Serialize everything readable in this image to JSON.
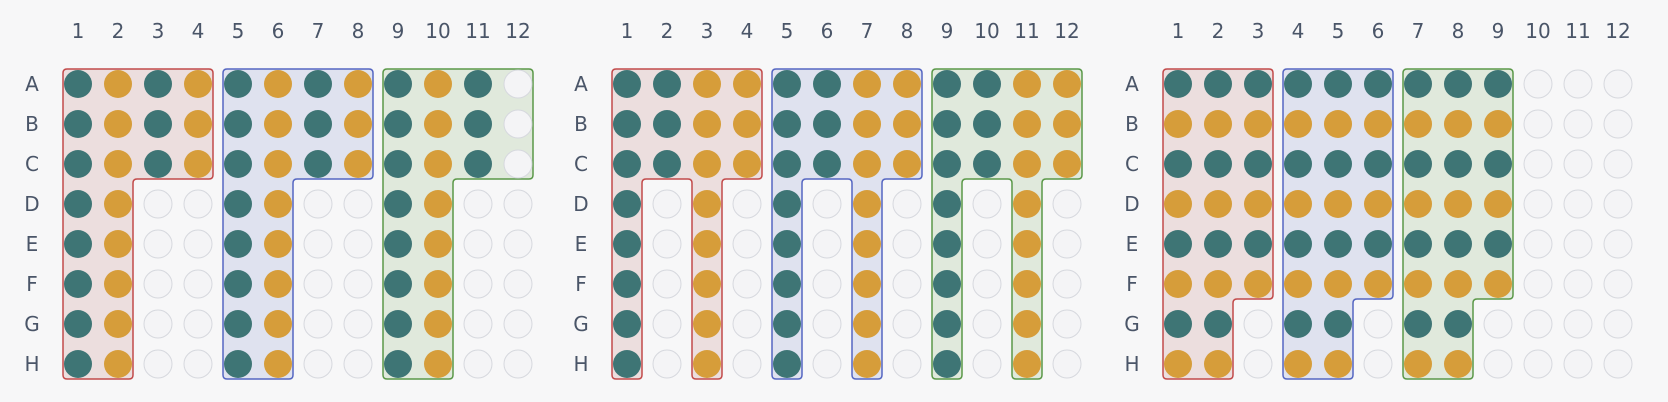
{
  "row_labels": [
    "A",
    "B",
    "C",
    "D",
    "E",
    "F",
    "G",
    "H"
  ],
  "col_labels": [
    "1",
    "2",
    "3",
    "4",
    "5",
    "6",
    "7",
    "8",
    "9",
    "10",
    "11",
    "12"
  ],
  "colors": {
    "teal": "#3e7575",
    "amber": "#d69d3a",
    "empty_fill": "#f4f4f6",
    "empty_stroke": "#d6d8de",
    "group_red": "#c24a4a",
    "group_red_fill": "#ecdede",
    "group_blue": "#5566c2",
    "group_blue_fill": "#dfe2ef",
    "group_green": "#5a9848",
    "group_green_fill": "#e0e9dc"
  },
  "plates": [
    {
      "name": "plate-1",
      "wells": [
        "TATATATATAT.",
        "TATATATATAT.",
        "TATATATATAT.",
        "TA..TA..TA..",
        "TA..TA..TA..",
        "TA..TA..TA..",
        "TA..TA..TA..",
        "TA..TA..TA.."
      ],
      "groups": [
        {
          "color": "group_red",
          "cells": [
            [
              0,
              0
            ],
            [
              0,
              1
            ],
            [
              0,
              2
            ],
            [
              0,
              3
            ],
            [
              1,
              0
            ],
            [
              1,
              1
            ],
            [
              1,
              2
            ],
            [
              1,
              3
            ],
            [
              2,
              0
            ],
            [
              2,
              1
            ],
            [
              2,
              2
            ],
            [
              2,
              3
            ],
            [
              3,
              0
            ],
            [
              3,
              1
            ],
            [
              4,
              0
            ],
            [
              4,
              1
            ],
            [
              5,
              0
            ],
            [
              5,
              1
            ],
            [
              6,
              0
            ],
            [
              6,
              1
            ],
            [
              7,
              0
            ],
            [
              7,
              1
            ]
          ]
        },
        {
          "color": "group_blue",
          "cells": [
            [
              0,
              4
            ],
            [
              0,
              5
            ],
            [
              0,
              6
            ],
            [
              0,
              7
            ],
            [
              1,
              4
            ],
            [
              1,
              5
            ],
            [
              1,
              6
            ],
            [
              1,
              7
            ],
            [
              2,
              4
            ],
            [
              2,
              5
            ],
            [
              2,
              6
            ],
            [
              2,
              7
            ],
            [
              3,
              4
            ],
            [
              3,
              5
            ],
            [
              4,
              4
            ],
            [
              4,
              5
            ],
            [
              5,
              4
            ],
            [
              5,
              5
            ],
            [
              6,
              4
            ],
            [
              6,
              5
            ],
            [
              7,
              4
            ],
            [
              7,
              5
            ]
          ]
        },
        {
          "color": "group_green",
          "cells": [
            [
              0,
              8
            ],
            [
              0,
              9
            ],
            [
              0,
              10
            ],
            [
              0,
              11
            ],
            [
              1,
              8
            ],
            [
              1,
              9
            ],
            [
              1,
              10
            ],
            [
              1,
              11
            ],
            [
              2,
              8
            ],
            [
              2,
              9
            ],
            [
              2,
              10
            ],
            [
              2,
              11
            ],
            [
              3,
              8
            ],
            [
              3,
              9
            ],
            [
              4,
              8
            ],
            [
              4,
              9
            ],
            [
              5,
              8
            ],
            [
              5,
              9
            ],
            [
              6,
              8
            ],
            [
              6,
              9
            ],
            [
              7,
              8
            ],
            [
              7,
              9
            ]
          ]
        }
      ]
    },
    {
      "name": "plate-2",
      "wells": [
        "TTAATTAATTAA",
        "TTAATTAATTAA",
        "TTAATTAATTAA",
        "T.A.T.A.T.A.",
        "T.A.T.A.T.A.",
        "T.A.T.A.T.A.",
        "T.A.T.A.T.A.",
        "T.A.T.A.T.A."
      ],
      "groups": [
        {
          "color": "group_red",
          "cells": [
            [
              0,
              0
            ],
            [
              0,
              1
            ],
            [
              0,
              2
            ],
            [
              0,
              3
            ],
            [
              1,
              0
            ],
            [
              1,
              1
            ],
            [
              1,
              2
            ],
            [
              1,
              3
            ],
            [
              2,
              0
            ],
            [
              2,
              1
            ],
            [
              2,
              2
            ],
            [
              2,
              3
            ],
            [
              3,
              0
            ],
            [
              3,
              2
            ],
            [
              4,
              0
            ],
            [
              4,
              2
            ],
            [
              5,
              0
            ],
            [
              5,
              2
            ],
            [
              6,
              0
            ],
            [
              6,
              2
            ],
            [
              7,
              0
            ],
            [
              7,
              2
            ]
          ]
        },
        {
          "color": "group_blue",
          "cells": [
            [
              0,
              4
            ],
            [
              0,
              5
            ],
            [
              0,
              6
            ],
            [
              0,
              7
            ],
            [
              1,
              4
            ],
            [
              1,
              5
            ],
            [
              1,
              6
            ],
            [
              1,
              7
            ],
            [
              2,
              4
            ],
            [
              2,
              5
            ],
            [
              2,
              6
            ],
            [
              2,
              7
            ],
            [
              3,
              4
            ],
            [
              3,
              6
            ],
            [
              4,
              4
            ],
            [
              4,
              6
            ],
            [
              5,
              4
            ],
            [
              5,
              6
            ],
            [
              6,
              4
            ],
            [
              6,
              6
            ],
            [
              7,
              4
            ],
            [
              7,
              6
            ]
          ]
        },
        {
          "color": "group_green",
          "cells": [
            [
              0,
              8
            ],
            [
              0,
              9
            ],
            [
              0,
              10
            ],
            [
              0,
              11
            ],
            [
              1,
              8
            ],
            [
              1,
              9
            ],
            [
              1,
              10
            ],
            [
              1,
              11
            ],
            [
              2,
              8
            ],
            [
              2,
              9
            ],
            [
              2,
              10
            ],
            [
              2,
              11
            ],
            [
              3,
              8
            ],
            [
              3,
              10
            ],
            [
              4,
              8
            ],
            [
              4,
              10
            ],
            [
              5,
              8
            ],
            [
              5,
              10
            ],
            [
              6,
              8
            ],
            [
              6,
              10
            ],
            [
              7,
              8
            ],
            [
              7,
              10
            ]
          ]
        }
      ]
    },
    {
      "name": "plate-3",
      "wells": [
        "TTTTTTTTT...",
        "AAAAAAAAA...",
        "TTTTTTTTT...",
        "AAAAAAAAA...",
        "TTTTTTTTT...",
        "AAAAAAAAA...",
        "TT.TT.TT....",
        "AA.AA.AA...."
      ],
      "groups": [
        {
          "color": "group_red",
          "cells": [
            [
              0,
              0
            ],
            [
              0,
              1
            ],
            [
              0,
              2
            ],
            [
              1,
              0
            ],
            [
              1,
              1
            ],
            [
              1,
              2
            ],
            [
              2,
              0
            ],
            [
              2,
              1
            ],
            [
              2,
              2
            ],
            [
              3,
              0
            ],
            [
              3,
              1
            ],
            [
              3,
              2
            ],
            [
              4,
              0
            ],
            [
              4,
              1
            ],
            [
              4,
              2
            ],
            [
              5,
              0
            ],
            [
              5,
              1
            ],
            [
              5,
              2
            ],
            [
              6,
              0
            ],
            [
              6,
              1
            ],
            [
              7,
              0
            ],
            [
              7,
              1
            ]
          ]
        },
        {
          "color": "group_blue",
          "cells": [
            [
              0,
              3
            ],
            [
              0,
              4
            ],
            [
              0,
              5
            ],
            [
              1,
              3
            ],
            [
              1,
              4
            ],
            [
              1,
              5
            ],
            [
              2,
              3
            ],
            [
              2,
              4
            ],
            [
              2,
              5
            ],
            [
              3,
              3
            ],
            [
              3,
              4
            ],
            [
              3,
              5
            ],
            [
              4,
              3
            ],
            [
              4,
              4
            ],
            [
              4,
              5
            ],
            [
              5,
              3
            ],
            [
              5,
              4
            ],
            [
              5,
              5
            ],
            [
              6,
              3
            ],
            [
              6,
              4
            ],
            [
              7,
              3
            ],
            [
              7,
              4
            ]
          ]
        },
        {
          "color": "group_green",
          "cells": [
            [
              0,
              6
            ],
            [
              0,
              7
            ],
            [
              0,
              8
            ],
            [
              1,
              6
            ],
            [
              1,
              7
            ],
            [
              1,
              8
            ],
            [
              2,
              6
            ],
            [
              2,
              7
            ],
            [
              2,
              8
            ],
            [
              3,
              6
            ],
            [
              3,
              7
            ],
            [
              3,
              8
            ],
            [
              4,
              6
            ],
            [
              4,
              7
            ],
            [
              4,
              8
            ],
            [
              5,
              6
            ],
            [
              5,
              7
            ],
            [
              5,
              8
            ],
            [
              6,
              6
            ],
            [
              6,
              7
            ],
            [
              7,
              6
            ],
            [
              7,
              7
            ]
          ]
        }
      ]
    }
  ]
}
